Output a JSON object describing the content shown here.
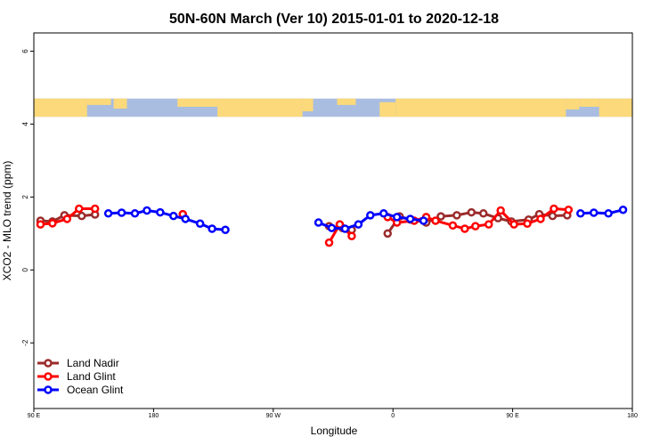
{
  "chart_data": {
    "type": "line",
    "title": "50N-60N March (Ver 10)   2015-01-01 to 2020-12-18",
    "xlabel": "Longitude",
    "ylabel": "XCO2 - MLO trend (ppm)",
    "xlim": [
      90,
      540
    ],
    "ylim": [
      -3.8,
      6.5
    ],
    "x_ticks": [
      {
        "value": 90,
        "label": "90 E"
      },
      {
        "value": 180,
        "label": "180"
      },
      {
        "value": 270,
        "label": "90 W"
      },
      {
        "value": 360,
        "label": "0"
      },
      {
        "value": 450,
        "label": "90 E"
      },
      {
        "value": 540,
        "label": "180"
      }
    ],
    "y_ticks": [
      {
        "value": -2,
        "label": "-2"
      },
      {
        "value": 0,
        "label": "0"
      },
      {
        "value": 2,
        "label": "2"
      },
      {
        "value": 4,
        "label": "4"
      },
      {
        "value": 6,
        "label": "6"
      }
    ],
    "map_band": {
      "y_min": 4.2,
      "y_max": 4.7,
      "ocean_color": "#a9bde0",
      "land_color": "#fcd97a"
    },
    "legend_position": "bottom-left",
    "grid": false,
    "series": [
      {
        "name": "Land Nadir",
        "color": "#9b2b2b",
        "segments": [
          [
            [
              95,
              1.35
            ],
            [
              104,
              1.33
            ],
            [
              113,
              1.5
            ],
            [
              126,
              1.48
            ],
            [
              136,
              1.52
            ]
          ],
          [
            [
              312,
              1.2
            ],
            [
              322,
              1.15
            ],
            [
              329,
              1.1
            ]
          ],
          [
            [
              356,
              1.0
            ],
            [
              365,
              1.47
            ],
            [
              373,
              1.38
            ],
            [
              385,
              1.3
            ],
            [
              396,
              1.47
            ],
            [
              408,
              1.5
            ],
            [
              419,
              1.58
            ],
            [
              428,
              1.55
            ],
            [
              439,
              1.42
            ],
            [
              449,
              1.33
            ],
            [
              462,
              1.38
            ],
            [
              470,
              1.53
            ],
            [
              480,
              1.48
            ],
            [
              491,
              1.5
            ]
          ]
        ]
      },
      {
        "name": "Land Glint",
        "color": "#ff0000",
        "segments": [
          [
            [
              95,
              1.25
            ],
            [
              104,
              1.28
            ],
            [
              115,
              1.4
            ],
            [
              124,
              1.68
            ],
            [
              136,
              1.68
            ]
          ],
          [
            [
              202,
              1.53
            ]
          ],
          [
            [
              312,
              0.75
            ],
            [
              320,
              1.25
            ],
            [
              329,
              0.93
            ]
          ],
          [
            [
              356,
              1.45
            ],
            [
              363,
              1.3
            ],
            [
              376,
              1.35
            ],
            [
              385,
              1.45
            ],
            [
              392,
              1.35
            ],
            [
              405,
              1.22
            ],
            [
              414,
              1.13
            ],
            [
              422,
              1.2
            ],
            [
              432,
              1.25
            ],
            [
              441,
              1.63
            ],
            [
              451,
              1.25
            ],
            [
              461,
              1.27
            ],
            [
              471,
              1.4
            ],
            [
              481,
              1.68
            ],
            [
              492,
              1.65
            ]
          ]
        ]
      },
      {
        "name": "Ocean Glint",
        "color": "#0000ff",
        "segments": [
          [
            [
              146,
              1.55
            ],
            [
              156,
              1.57
            ],
            [
              166,
              1.55
            ],
            [
              175,
              1.63
            ],
            [
              185,
              1.58
            ],
            [
              195,
              1.48
            ],
            [
              204,
              1.4
            ],
            [
              215,
              1.27
            ],
            [
              224,
              1.13
            ],
            [
              234,
              1.1
            ]
          ],
          [
            [
              304,
              1.3
            ],
            [
              314,
              1.15
            ],
            [
              324,
              1.13
            ],
            [
              334,
              1.25
            ],
            [
              343,
              1.5
            ],
            [
              353,
              1.55
            ],
            [
              363,
              1.45
            ],
            [
              373,
              1.4
            ],
            [
              383,
              1.35
            ]
          ],
          [
            [
              501,
              1.55
            ],
            [
              511,
              1.57
            ],
            [
              522,
              1.55
            ],
            [
              533,
              1.65
            ]
          ]
        ]
      }
    ]
  }
}
